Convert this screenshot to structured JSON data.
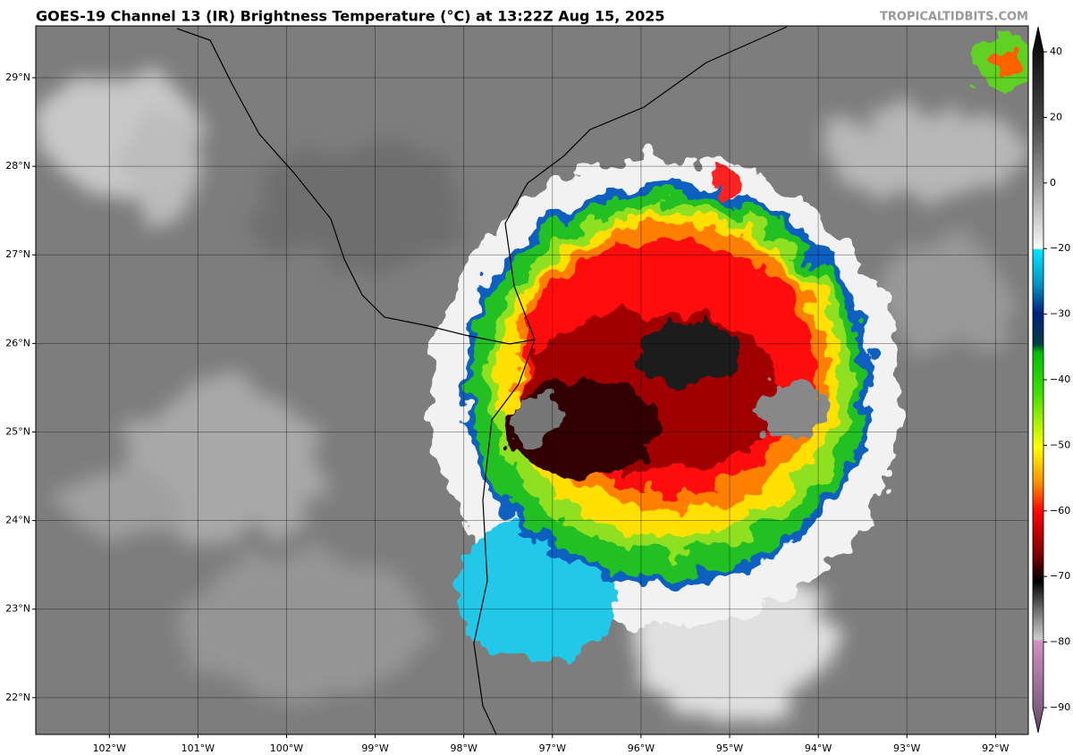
{
  "header": {
    "title": "GOES-19 Channel 13 (IR) Brightness Temperature (°C) at 13:22Z Aug 15, 2025",
    "credit": "TROPICALTIDBITS.COM"
  },
  "map": {
    "lon_range": [
      -102.83,
      -91.63
    ],
    "lat_range": [
      21.585,
      29.585
    ],
    "lon_ticks": [
      {
        "value": -102,
        "label": "102°W"
      },
      {
        "value": -101,
        "label": "101°W"
      },
      {
        "value": -100,
        "label": "100°W"
      },
      {
        "value": -99,
        "label": "99°W"
      },
      {
        "value": -98,
        "label": "98°W"
      },
      {
        "value": -97,
        "label": "97°W"
      },
      {
        "value": -96,
        "label": "96°W"
      },
      {
        "value": -95,
        "label": "95°W"
      },
      {
        "value": -94,
        "label": "94°W"
      },
      {
        "value": -93,
        "label": "93°W"
      },
      {
        "value": -92,
        "label": "92°W"
      }
    ],
    "lat_ticks": [
      {
        "value": 29,
        "label": "29°N"
      },
      {
        "value": 28,
        "label": "28°N"
      },
      {
        "value": 27,
        "label": "27°N"
      },
      {
        "value": 26,
        "label": "26°N"
      },
      {
        "value": 25,
        "label": "25°N"
      },
      {
        "value": 24,
        "label": "24°N"
      },
      {
        "value": 23,
        "label": "23°N"
      },
      {
        "value": 22,
        "label": "22°N"
      }
    ]
  },
  "colorbar": {
    "ticks": [
      {
        "value": 40,
        "label": "40"
      },
      {
        "value": 20,
        "label": "20"
      },
      {
        "value": 0,
        "label": "0"
      },
      {
        "value": -20,
        "label": "−20"
      },
      {
        "value": -30,
        "label": "−30"
      },
      {
        "value": -40,
        "label": "−40"
      },
      {
        "value": -50,
        "label": "−50"
      },
      {
        "value": -60,
        "label": "−60"
      },
      {
        "value": -70,
        "label": "−70"
      },
      {
        "value": -80,
        "label": "−80"
      },
      {
        "value": -90,
        "label": "−90"
      }
    ]
  }
}
